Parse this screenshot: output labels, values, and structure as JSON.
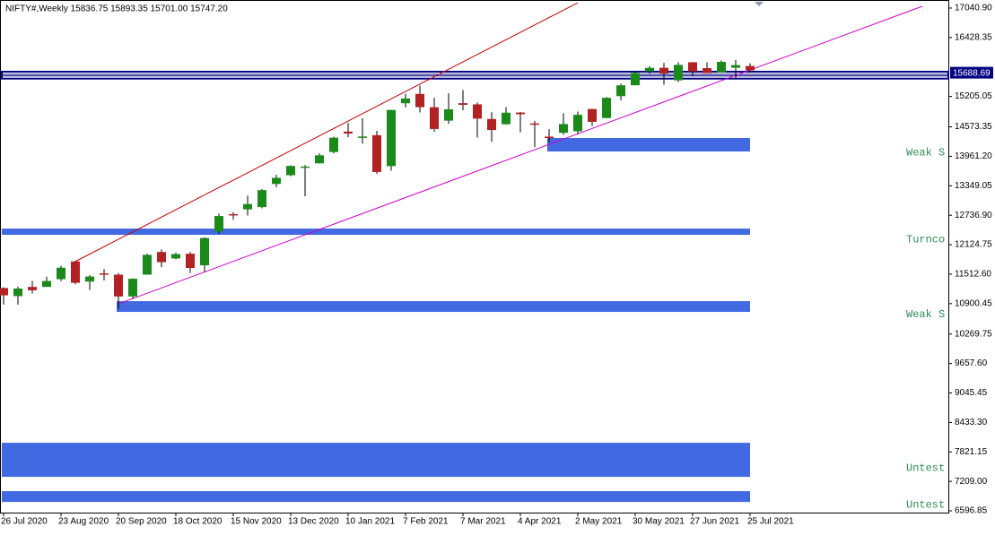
{
  "chart_data": {
    "type": "candlestick",
    "title": "NIFTY#,Weekly  15836.75 15893.35 15701.00 15747.20",
    "categories": [
      "26 Jul 2020",
      null,
      null,
      null,
      "23 Aug 2020",
      null,
      null,
      null,
      "20 Sep 2020",
      null,
      null,
      null,
      "18 Oct 2020",
      null,
      null,
      null,
      "15 Nov 2020",
      null,
      null,
      null,
      "13 Dec 2020",
      null,
      null,
      null,
      "10 Jan 2021",
      null,
      null,
      null,
      "7 Feb 2021",
      null,
      null,
      null,
      "7 Mar 2021",
      null,
      null,
      null,
      "4 Apr 2021",
      null,
      null,
      null,
      "2 May 2021",
      null,
      null,
      null,
      "30 May 2021",
      null,
      null,
      null,
      "27 Jun 2021",
      null,
      null,
      null,
      "25 Jul 2021"
    ],
    "open": [
      11225,
      11057,
      11248,
      11248,
      11409,
      11777,
      11359,
      11530,
      11503,
      11050,
      11503,
      11973,
      11839,
      11937,
      11697,
      12399,
      12760,
      12859,
      12906,
      13386,
      13569,
      13741,
      13815,
      14051,
      14474,
      14371,
      14400,
      13758,
      15063,
      15257,
      14981,
      14702,
      15065,
      15040,
      14736,
      14628,
      14870,
      14644,
      14370,
      14449,
      14481,
      14944,
      14756,
      15211,
      15437,
      15725,
      15799,
      15540,
      15915,
      15793,
      15703,
      15800,
      15836.75
    ],
    "high": [
      11240,
      11256,
      11373,
      11460,
      11686,
      11794,
      11493,
      11618,
      11535,
      11428,
      11938,
      12025,
      11959,
      11975,
      12280,
      12770,
      12800,
      13145,
      13280,
      13579,
      13773,
      13777,
      14024,
      14367,
      14653,
      14753,
      14491,
      14925,
      15257,
      15431,
      15176,
      15273,
      15336,
      15082,
      14878,
      14984,
      14880,
      14697,
      14526,
      14855,
      14890,
      14943,
      15190,
      15469,
      15733,
      15835,
      15901,
      15915,
      15915,
      15915,
      15952,
      15962,
      15893.35
    ],
    "low": [
      10882,
      10882,
      11111,
      11250,
      11370,
      11303,
      11185,
      11383,
      10790,
      11000,
      11500,
      11661,
      11823,
      11535,
      11557,
      12350,
      12643,
      12730,
      12880,
      13319,
      13547,
      13132,
      13811,
      14022,
      14357,
      14222,
      13597,
      13662,
      14977,
      14871,
      14467,
      14635,
      14919,
      14350,
      14264,
      14617,
      14460,
      14151,
      14250,
      14408,
      14417,
      14591,
      14756,
      15126,
      15437,
      15680,
      15450,
      15505,
      15635,
      15750,
      15700,
      15578,
      15701
    ],
    "close": [
      11073,
      11214,
      11178,
      11371,
      11647,
      11333,
      11464,
      11504,
      11050,
      11417,
      11914,
      11762,
      11930,
      11642,
      12263,
      12720,
      12740,
      12969,
      13258,
      13514,
      13761,
      13749,
      13982,
      14347,
      14434,
      14372,
      13635,
      14924,
      15163,
      14982,
      14529,
      14938,
      15030,
      14744,
      14507,
      14867,
      14835,
      14617,
      14341,
      14631,
      14823,
      14677,
      15176,
      15436,
      15690,
      15799,
      15683,
      15860,
      15722,
      15690,
      15923,
      15856,
      15747.2
    ],
    "up_color": "#1a8a1a",
    "down_color": "#b22222",
    "ylim": [
      6560,
      17208
    ],
    "yticks": [
      {
        "value": 17040.9,
        "label": "17040.90"
      },
      {
        "value": 16428.35,
        "label": "16428.35"
      },
      {
        "value": 15205.05,
        "label": "15205.05"
      },
      {
        "value": 14573.35,
        "label": "14573.35"
      },
      {
        "value": 13961.2,
        "label": "13961.20"
      },
      {
        "value": 13349.05,
        "label": "13349.05"
      },
      {
        "value": 12736.9,
        "label": "12736.90"
      },
      {
        "value": 12124.75,
        "label": "12124.75"
      },
      {
        "value": 11512.6,
        "label": "11512.60"
      },
      {
        "value": 10900.45,
        "label": "10900.45"
      },
      {
        "value": 10269.75,
        "label": "10269.75"
      },
      {
        "value": 9657.6,
        "label": "9657.60"
      },
      {
        "value": 9045.45,
        "label": "9045.45"
      },
      {
        "value": 8433.3,
        "label": "8433.30"
      },
      {
        "value": 7821.15,
        "label": "7821.15"
      },
      {
        "value": 7209,
        "label": "7209.00"
      },
      {
        "value": 6596.85,
        "label": "6596.85"
      }
    ],
    "zones": [
      {
        "from": 38,
        "top": 14341,
        "bottom": 14061,
        "label": "Weak S"
      },
      {
        "from": 0,
        "top": 12460,
        "bottom": 12330,
        "label": "Turnco"
      },
      {
        "from": 8,
        "top": 10952,
        "bottom": 10729,
        "label": "Weak S"
      },
      {
        "from": 0,
        "top": 8010,
        "bottom": 7302,
        "label": "Untest"
      },
      {
        "from": 0,
        "top": 7005,
        "bottom": 6781,
        "label": "Untest"
      }
    ],
    "zone_color": "#4169e1",
    "trendlines": [
      {
        "color": "#c00000",
        "points": [
          [
            5,
            11777
          ],
          [
            40,
            17150
          ]
        ]
      },
      {
        "color": "#cc00cc",
        "points": [
          [
            8,
            10896
          ],
          [
            64,
            17078
          ]
        ]
      }
    ],
    "levels": [
      15718,
      15575
    ],
    "level_color": "#000080",
    "price_label": {
      "value": 15688.69,
      "label": "15688.69"
    }
  }
}
